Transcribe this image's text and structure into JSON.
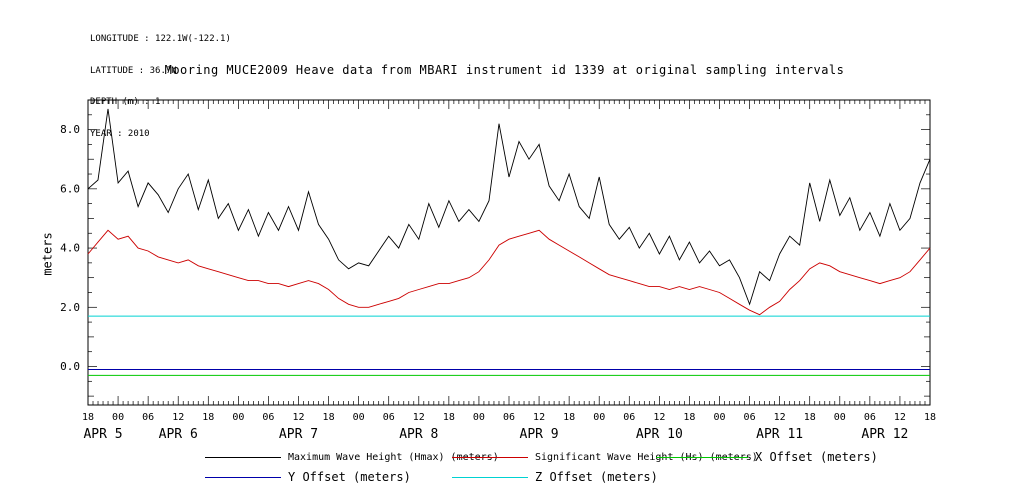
{
  "header": {
    "longitude": "LONGITUDE : 122.1W(-122.1)",
    "latitude": "LATITUDE : 36.7N",
    "depth": "DEPTH (m) : 1",
    "year": "YEAR : 2010"
  },
  "chart_data": {
    "type": "line",
    "title": "Mooring MUCE2009 Heave data from MBARI instrument id 1339 at original sampling intervals",
    "ylabel": "meters",
    "ylim": [
      -1.3,
      9.0
    ],
    "y_ticks": [
      0.0,
      2.0,
      4.0,
      6.0,
      8.0
    ],
    "x_range_hours": [
      0,
      168
    ],
    "x_start": "APR 5 18:00",
    "x_end": "APR 12 18:00",
    "x_tick_step_hours": 6,
    "x_tick_labels": [
      "18",
      "00",
      "06",
      "12",
      "18",
      "00",
      "06",
      "12",
      "18",
      "00",
      "06",
      "12",
      "18",
      "00",
      "06",
      "12",
      "18",
      "00",
      "06",
      "12",
      "18",
      "00",
      "06",
      "12",
      "18",
      "00",
      "06",
      "12",
      "18"
    ],
    "day_labels": [
      {
        "label": "APR 5",
        "center_hour": 3
      },
      {
        "label": "APR 6",
        "center_hour": 18
      },
      {
        "label": "APR 7",
        "center_hour": 42
      },
      {
        "label": "APR 8",
        "center_hour": 66
      },
      {
        "label": "APR 9",
        "center_hour": 90
      },
      {
        "label": "APR 10",
        "center_hour": 114
      },
      {
        "label": "APR 11",
        "center_hour": 138
      },
      {
        "label": "APR 12",
        "center_hour": 159
      }
    ],
    "grid": "off",
    "legend_position": "bottom",
    "axis_color": "#000000",
    "background": "#ffffff",
    "series": [
      {
        "name": "Maximum Wave Height (Hmax) (meters)",
        "color": "#000000",
        "x_step_hours": 2,
        "values": [
          6.0,
          6.3,
          8.7,
          6.2,
          6.6,
          5.4,
          6.2,
          5.8,
          5.2,
          6.0,
          6.5,
          5.3,
          6.3,
          5.0,
          5.5,
          4.6,
          5.3,
          4.4,
          5.2,
          4.6,
          5.4,
          4.6,
          5.9,
          4.8,
          4.3,
          3.6,
          3.3,
          3.5,
          3.4,
          3.9,
          4.4,
          4.0,
          4.8,
          4.3,
          5.5,
          4.7,
          5.6,
          4.9,
          5.3,
          4.9,
          5.6,
          8.2,
          6.4,
          7.6,
          7.0,
          7.5,
          6.1,
          5.6,
          6.5,
          5.4,
          5.0,
          6.4,
          4.8,
          4.3,
          4.7,
          4.0,
          4.5,
          3.8,
          4.4,
          3.6,
          4.2,
          3.5,
          3.9,
          3.4,
          3.6,
          3.0,
          2.1,
          3.2,
          2.9,
          3.8,
          4.4,
          4.1,
          6.2,
          4.9,
          6.3,
          5.1,
          5.7,
          4.6,
          5.2,
          4.4,
          5.5,
          4.6,
          5.0,
          6.2,
          7.0
        ]
      },
      {
        "name": "Significant Wave Height (Hs) (meters)",
        "color": "#cc0000",
        "x_step_hours": 2,
        "values": [
          3.8,
          4.2,
          4.6,
          4.3,
          4.4,
          4.0,
          3.9,
          3.7,
          3.6,
          3.5,
          3.6,
          3.4,
          3.3,
          3.2,
          3.1,
          3.0,
          2.9,
          2.9,
          2.8,
          2.8,
          2.7,
          2.8,
          2.9,
          2.8,
          2.6,
          2.3,
          2.1,
          2.0,
          2.0,
          2.1,
          2.2,
          2.3,
          2.5,
          2.6,
          2.7,
          2.8,
          2.8,
          2.9,
          3.0,
          3.2,
          3.6,
          4.1,
          4.3,
          4.4,
          4.5,
          4.6,
          4.3,
          4.1,
          3.9,
          3.7,
          3.5,
          3.3,
          3.1,
          3.0,
          2.9,
          2.8,
          2.7,
          2.7,
          2.6,
          2.7,
          2.6,
          2.7,
          2.6,
          2.5,
          2.3,
          2.1,
          1.9,
          1.75,
          2.0,
          2.2,
          2.6,
          2.9,
          3.3,
          3.5,
          3.4,
          3.2,
          3.1,
          3.0,
          2.9,
          2.8,
          2.9,
          3.0,
          3.2,
          3.6,
          4.0
        ]
      }
    ],
    "offset_lines": [
      {
        "name": "X Offset (meters)",
        "color": "#00c800",
        "value": -0.3
      },
      {
        "name": "Y Offset (meters)",
        "color": "#0000aa",
        "value": -0.1
      },
      {
        "name": "Z Offset (meters)",
        "color": "#00d2d2",
        "value": 1.7
      }
    ]
  }
}
